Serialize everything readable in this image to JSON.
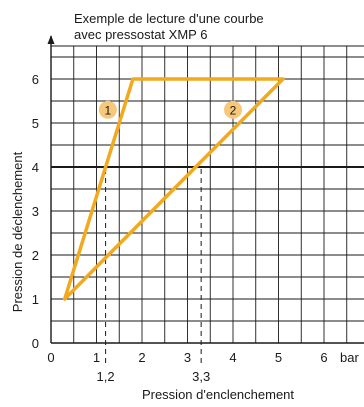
{
  "chart_data": {
    "type": "line",
    "title_line1": "Exemple de lecture d'une courbe",
    "title_line2": "avec pressostat XMP 6",
    "xlabel": "Pression d'enclenchement",
    "ylabel": "Pression de déclenchement",
    "x_unit": "bar",
    "x_ticks": [
      "0",
      "1",
      "2",
      "3",
      "4",
      "5",
      "6"
    ],
    "y_ticks": [
      "0",
      "1",
      "2",
      "3",
      "4",
      "5",
      "6"
    ],
    "xlim": [
      0,
      6.5
    ],
    "ylim": [
      0,
      6.6
    ],
    "grid": true,
    "grid_minor_step": 0.5,
    "series": [
      {
        "x": [
          0.3,
          1.8,
          5.1,
          0.3
        ],
        "y": [
          1,
          6,
          6,
          1
        ]
      }
    ],
    "region_labels": [
      {
        "text": "1",
        "x": 1.25,
        "y": 5.3
      },
      {
        "text": "2",
        "x": 4.0,
        "y": 5.3
      }
    ],
    "reference_line": {
      "y": 4
    },
    "markers": [
      {
        "x": 1.2,
        "label": "1,2"
      },
      {
        "x": 3.3,
        "label": "3,3"
      }
    ],
    "colors": {
      "series": "#f2a91e",
      "badge": "#f7c77a",
      "grid": "#1a1a1a"
    }
  }
}
